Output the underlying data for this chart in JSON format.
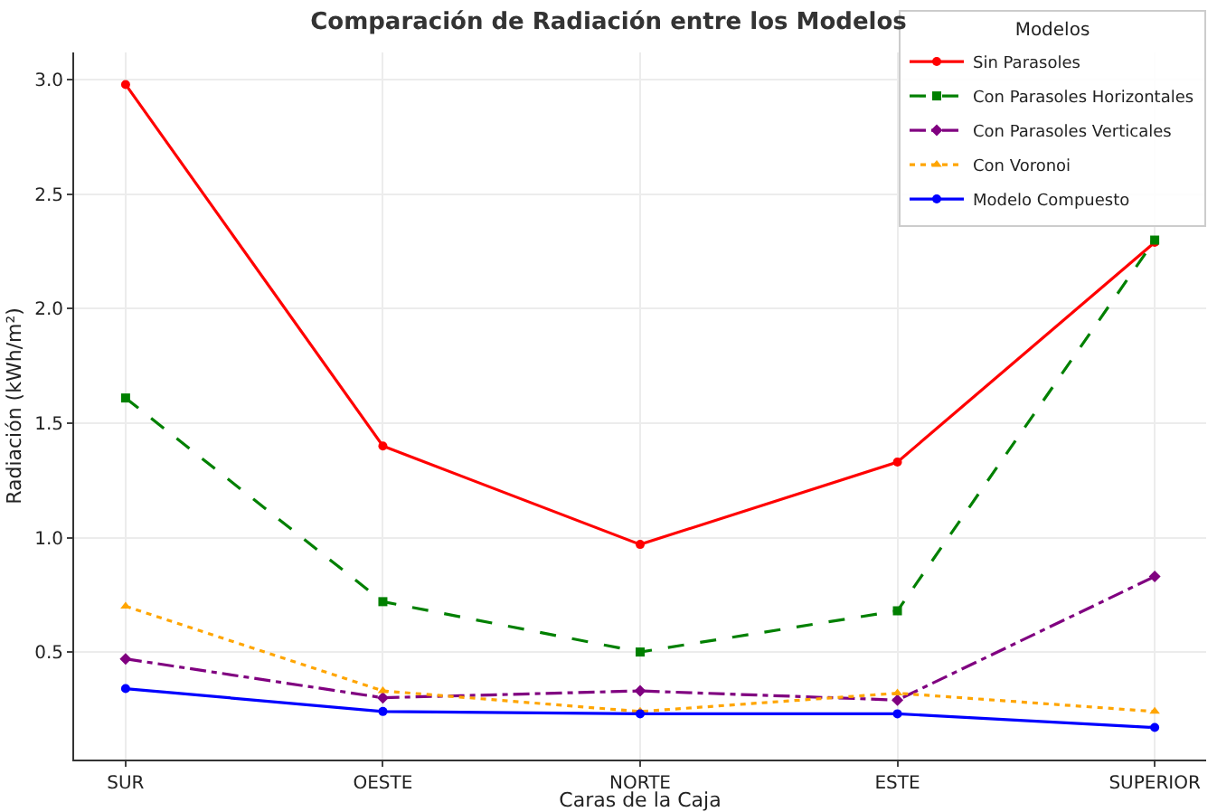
{
  "chart_data": {
    "type": "line",
    "title": "Comparación de Radiación entre los Modelos",
    "xlabel": "Caras de la Caja",
    "ylabel": "Radiación (kWh/m²)",
    "legend_title": "Modelos",
    "legend": "top right",
    "grid": true,
    "categories": [
      "SUR",
      "OESTE",
      "NORTE",
      "ESTE",
      "SUPERIOR"
    ],
    "ylim": [
      0.03,
      3.12
    ],
    "yticks": [
      0.5,
      {
        "value": 1,
        "label": "1.0"
      },
      1.5,
      {
        "value": 2,
        "label": "2.0"
      },
      2.5,
      {
        "value": 3,
        "label": "3.0"
      }
    ],
    "series": [
      {
        "name": "Sin Parasoles",
        "color": "#ff0000",
        "marker": "circle",
        "line_style": "solid",
        "values": [
          2.98,
          1.4,
          0.97,
          1.33,
          2.29
        ]
      },
      {
        "name": "Con Parasoles Horizontales",
        "color": "#008000",
        "marker": "square",
        "line_style": "dashed",
        "values": [
          1.61,
          0.72,
          0.5,
          0.68,
          2.3
        ]
      },
      {
        "name": "Con Parasoles Verticales",
        "color": "#800080",
        "marker": "diamond",
        "line_style": "dashdot",
        "values": [
          0.47,
          0.3,
          0.33,
          0.29,
          0.83
        ]
      },
      {
        "name": "Con Voronoi",
        "color": "#ffa500",
        "marker": "triangle",
        "line_style": "dotted",
        "values": [
          0.7,
          0.33,
          0.24,
          0.32,
          0.24
        ]
      },
      {
        "name": "Modelo Compuesto",
        "color": "#0000ff",
        "marker": "circle",
        "line_style": "solid",
        "values": [
          0.34,
          0.24,
          0.23,
          0.23,
          0.17
        ]
      }
    ]
  }
}
